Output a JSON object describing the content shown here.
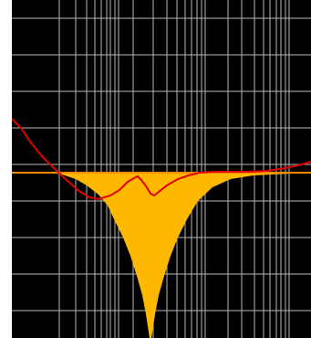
{
  "colors": {
    "background": "#000000",
    "frame": "#ffffff",
    "grid": "#b8b8b8",
    "filter_fill": "#ffb800",
    "filter_edge": "#ff8a00",
    "response_curve": "#e00000"
  },
  "icons": {
    "display": "eq-frequency-response-display"
  },
  "chart_data": {
    "type": "area",
    "x_scale": "log",
    "grid": true,
    "baseline_level": 0,
    "notch": {
      "center_fraction": 0.46,
      "depth_fraction": 1.0
    },
    "series": [
      {
        "kind": "filter-band-fill",
        "shape": "notch",
        "color": "#ffb800"
      },
      {
        "kind": "response-line",
        "color": "#e00000"
      }
    ]
  }
}
